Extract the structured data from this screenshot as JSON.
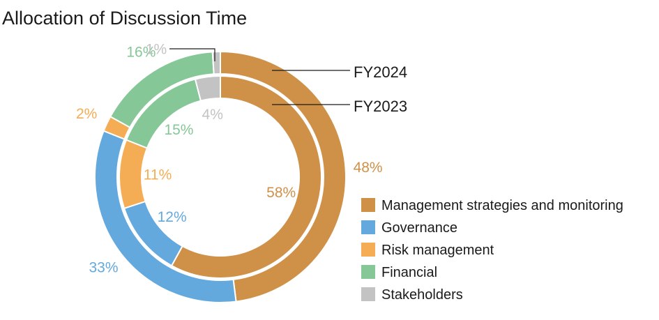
{
  "chart_data": {
    "type": "pie",
    "title": "Allocation of Discussion Time",
    "categories": [
      "Management strategies and monitoring",
      "Governance",
      "Risk management",
      "Financial",
      "Stakeholders"
    ],
    "colors": [
      "#cf9148",
      "#64a9dd",
      "#f5ad55",
      "#86c797",
      "#c3c3c3"
    ],
    "series": [
      {
        "name": "FY2024",
        "values": [
          48,
          33,
          2,
          16,
          1
        ],
        "labels": [
          "48%",
          "33%",
          "2%",
          "16%",
          "1%"
        ]
      },
      {
        "name": "FY2023",
        "values": [
          58,
          12,
          11,
          15,
          4
        ],
        "labels": [
          "58%",
          "12%",
          "11%",
          "15%",
          "4%"
        ]
      }
    ],
    "legend_position": "bottom-right"
  }
}
